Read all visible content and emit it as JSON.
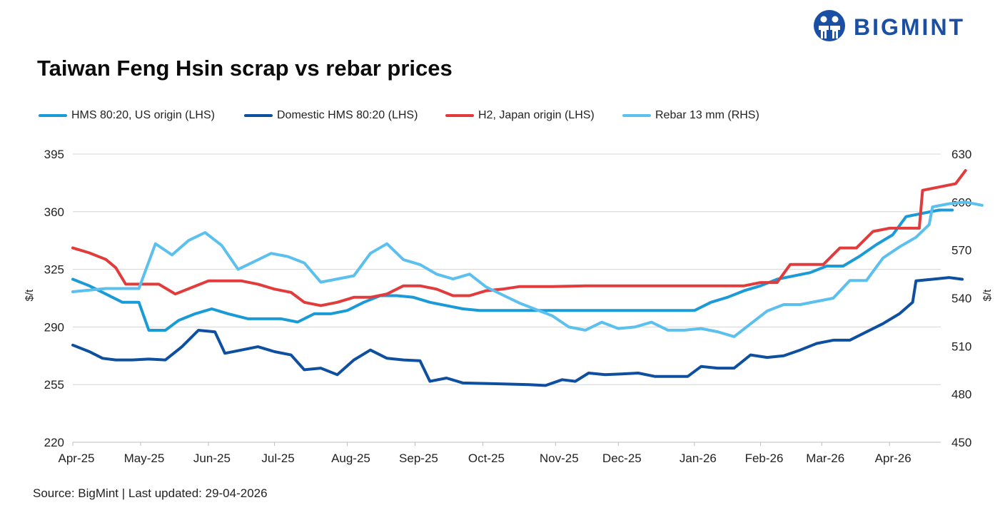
{
  "title": "Taiwan Feng Hsin scrap vs rebar prices",
  "brand": {
    "name": "BIGMINT",
    "color": "#1b4fa3",
    "logo_icon": "bigmint-people-icon"
  },
  "source": "Source: BigMint | Last updated: 29-04-2026",
  "chart_data": {
    "type": "line",
    "title": "Taiwan Feng Hsin scrap vs rebar prices",
    "xlabel": "",
    "ylabel": "$/t",
    "y2label": "$/t",
    "ylim": [
      220,
      395
    ],
    "yticks": [
      220,
      255,
      290,
      325,
      360,
      395
    ],
    "y2lim": [
      450,
      630
    ],
    "y2ticks": [
      450,
      480,
      510,
      540,
      570,
      600,
      630
    ],
    "x_range_weeks": [
      0,
      52.5
    ],
    "x_ticks": [
      {
        "label": "Apr-25",
        "week": 0
      },
      {
        "label": "May-25",
        "week": 4.1
      },
      {
        "label": "Jun-25",
        "week": 8.2
      },
      {
        "label": "Jul-25",
        "week": 12.2
      },
      {
        "label": "Aug-25",
        "week": 16.6
      },
      {
        "label": "Sep-25",
        "week": 20.7
      },
      {
        "label": "Oct-25",
        "week": 24.8
      },
      {
        "label": "Nov-25",
        "week": 29.2
      },
      {
        "label": "Dec-25",
        "week": 33.0
      },
      {
        "label": "Jan-26",
        "week": 37.6
      },
      {
        "label": "Feb-26",
        "week": 41.6
      },
      {
        "label": "Mar-26",
        "week": 45.3
      },
      {
        "label": "Apr-26",
        "week": 49.4
      }
    ],
    "grid": true,
    "legend_position": "top",
    "series": [
      {
        "name": "HMS 80:20, US origin (LHS)",
        "axis": "left",
        "color": "#1a9ad6",
        "points": [
          [
            0,
            319
          ],
          [
            1,
            315
          ],
          [
            2,
            310
          ],
          [
            3,
            305
          ],
          [
            4,
            305
          ],
          [
            4.6,
            288
          ],
          [
            5.6,
            288
          ],
          [
            6.4,
            294
          ],
          [
            7.4,
            298
          ],
          [
            8.4,
            301
          ],
          [
            9.4,
            298
          ],
          [
            10.6,
            295
          ],
          [
            11.6,
            295
          ],
          [
            12.6,
            295
          ],
          [
            13.6,
            293
          ],
          [
            14.6,
            298
          ],
          [
            15.6,
            298
          ],
          [
            16.6,
            300
          ],
          [
            17.6,
            305
          ],
          [
            18.6,
            309
          ],
          [
            19.6,
            309
          ],
          [
            20.6,
            308
          ],
          [
            21.6,
            305
          ],
          [
            22.6,
            303
          ],
          [
            23.6,
            301
          ],
          [
            24.6,
            300
          ],
          [
            26.5,
            300
          ],
          [
            29,
            300
          ],
          [
            31,
            300
          ],
          [
            33,
            300
          ],
          [
            35,
            300
          ],
          [
            37.6,
            300
          ],
          [
            38.6,
            305
          ],
          [
            39.6,
            308
          ],
          [
            40.6,
            312
          ],
          [
            41.6,
            315
          ],
          [
            42.6,
            319
          ],
          [
            43.6,
            321
          ],
          [
            44.6,
            323
          ],
          [
            45.6,
            327
          ],
          [
            46.6,
            327
          ],
          [
            47.6,
            333
          ],
          [
            48.6,
            340
          ],
          [
            49.6,
            346
          ],
          [
            50.4,
            357
          ],
          [
            51.4,
            359
          ],
          [
            52.4,
            361
          ],
          [
            53.2,
            361
          ]
        ]
      },
      {
        "name": "Domestic HMS 80:20 (LHS)",
        "axis": "left",
        "color": "#0e4fa0",
        "points": [
          [
            0,
            279
          ],
          [
            1,
            275
          ],
          [
            1.8,
            271
          ],
          [
            2.6,
            270
          ],
          [
            3.6,
            270
          ],
          [
            4.6,
            270.5
          ],
          [
            5.6,
            270
          ],
          [
            6.6,
            278
          ],
          [
            7.6,
            288
          ],
          [
            8.6,
            287
          ],
          [
            9.2,
            274
          ],
          [
            10.2,
            276
          ],
          [
            11.2,
            278
          ],
          [
            12.2,
            275
          ],
          [
            13.2,
            273
          ],
          [
            14,
            264
          ],
          [
            15,
            265
          ],
          [
            16,
            261
          ],
          [
            17,
            270
          ],
          [
            18,
            276
          ],
          [
            19,
            271
          ],
          [
            20,
            270
          ],
          [
            21,
            269.5
          ],
          [
            21.6,
            257
          ],
          [
            22.6,
            259
          ],
          [
            23.6,
            256
          ],
          [
            25.6,
            255.5
          ],
          [
            27.6,
            255
          ],
          [
            28.6,
            254.5
          ],
          [
            29.6,
            258
          ],
          [
            30.4,
            257
          ],
          [
            31.2,
            262
          ],
          [
            32.2,
            261
          ],
          [
            33.2,
            261.5
          ],
          [
            34.2,
            262
          ],
          [
            35.2,
            260
          ],
          [
            36.2,
            260
          ],
          [
            37.2,
            260
          ],
          [
            38,
            266
          ],
          [
            39,
            265
          ],
          [
            40,
            265
          ],
          [
            41,
            273
          ],
          [
            42,
            271.5
          ],
          [
            43,
            272.5
          ],
          [
            44,
            276
          ],
          [
            45,
            280
          ],
          [
            46,
            282
          ],
          [
            47,
            282
          ],
          [
            48,
            287
          ],
          [
            49,
            292
          ],
          [
            50,
            298
          ],
          [
            50.8,
            305
          ],
          [
            51,
            318
          ],
          [
            52,
            319
          ],
          [
            53,
            320
          ],
          [
            53.8,
            319
          ]
        ]
      },
      {
        "name": "H2, Japan origin (LHS)",
        "axis": "left",
        "color": "#e23b3b",
        "points": [
          [
            0,
            338
          ],
          [
            1,
            335
          ],
          [
            2,
            331
          ],
          [
            2.6,
            326
          ],
          [
            3.2,
            316
          ],
          [
            4.2,
            316
          ],
          [
            5.2,
            316
          ],
          [
            6.2,
            310
          ],
          [
            7.2,
            314
          ],
          [
            8.2,
            318
          ],
          [
            9.2,
            318
          ],
          [
            10.2,
            318
          ],
          [
            11.2,
            316
          ],
          [
            12.2,
            313
          ],
          [
            13.2,
            311
          ],
          [
            14,
            305
          ],
          [
            15,
            303
          ],
          [
            16,
            305
          ],
          [
            17,
            308
          ],
          [
            18,
            308
          ],
          [
            19,
            310
          ],
          [
            20,
            315
          ],
          [
            21,
            315
          ],
          [
            22,
            313
          ],
          [
            23,
            309
          ],
          [
            24,
            309
          ],
          [
            25,
            312
          ],
          [
            26,
            313
          ],
          [
            27,
            314.5
          ],
          [
            29,
            314.5
          ],
          [
            31,
            315
          ],
          [
            33,
            315
          ],
          [
            35,
            315
          ],
          [
            37.6,
            315
          ],
          [
            39.6,
            315
          ],
          [
            40.6,
            315
          ],
          [
            41.6,
            317
          ],
          [
            42.6,
            317
          ],
          [
            43.4,
            328
          ],
          [
            44.4,
            328
          ],
          [
            45.4,
            328
          ],
          [
            46.4,
            338
          ],
          [
            47.4,
            338
          ],
          [
            48.4,
            348
          ],
          [
            49.4,
            350
          ],
          [
            50.4,
            350
          ],
          [
            51.2,
            350
          ],
          [
            51.4,
            373
          ],
          [
            52.4,
            375
          ],
          [
            53.4,
            377
          ],
          [
            54,
            385
          ]
        ]
      },
      {
        "name": "Rebar 13 mm (RHS)",
        "axis": "right",
        "color": "#5bc0ee",
        "points": [
          [
            0,
            544
          ],
          [
            1,
            545
          ],
          [
            2,
            546
          ],
          [
            3,
            546
          ],
          [
            4,
            546
          ],
          [
            5,
            574
          ],
          [
            6,
            567
          ],
          [
            7,
            576
          ],
          [
            8,
            581
          ],
          [
            9,
            573
          ],
          [
            10,
            558
          ],
          [
            11,
            563
          ],
          [
            12,
            568
          ],
          [
            13,
            566
          ],
          [
            14,
            562
          ],
          [
            15,
            550
          ],
          [
            16,
            552
          ],
          [
            17,
            554
          ],
          [
            18,
            568
          ],
          [
            19,
            574
          ],
          [
            20,
            564
          ],
          [
            21,
            561
          ],
          [
            22,
            555
          ],
          [
            23,
            552
          ],
          [
            24,
            555
          ],
          [
            25,
            547
          ],
          [
            26,
            542
          ],
          [
            27,
            537
          ],
          [
            28,
            533
          ],
          [
            29,
            529
          ],
          [
            30,
            522
          ],
          [
            31,
            520
          ],
          [
            32,
            525
          ],
          [
            33,
            521
          ],
          [
            34,
            522
          ],
          [
            35,
            525
          ],
          [
            36,
            520
          ],
          [
            37,
            520
          ],
          [
            38,
            521
          ],
          [
            39,
            519
          ],
          [
            40,
            516
          ],
          [
            41,
            524
          ],
          [
            42,
            532
          ],
          [
            43,
            536
          ],
          [
            44,
            536
          ],
          [
            45,
            538
          ],
          [
            46,
            540
          ],
          [
            47,
            551
          ],
          [
            48,
            551
          ],
          [
            49,
            565
          ],
          [
            50,
            572
          ],
          [
            51,
            578
          ],
          [
            51.8,
            586
          ],
          [
            52,
            597
          ],
          [
            53,
            599
          ],
          [
            54,
            600
          ],
          [
            55,
            598
          ]
        ]
      }
    ]
  }
}
